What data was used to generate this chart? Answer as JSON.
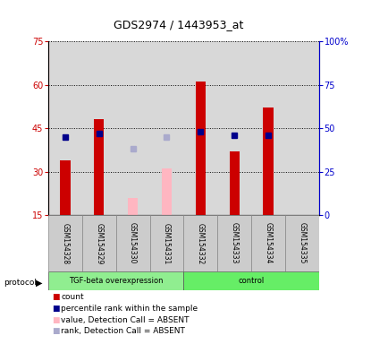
{
  "title": "GDS2974 / 1443953_at",
  "samples": [
    "GSM154328",
    "GSM154329",
    "GSM154330",
    "GSM154331",
    "GSM154332",
    "GSM154333",
    "GSM154334",
    "GSM154335"
  ],
  "count_values": [
    34,
    48,
    null,
    null,
    61,
    37,
    52,
    null
  ],
  "count_absent_values": [
    null,
    null,
    21,
    31,
    null,
    null,
    null,
    null
  ],
  "rank_present_values": [
    45,
    47,
    null,
    null,
    48,
    46,
    46,
    null
  ],
  "rank_absent_values": [
    null,
    null,
    38,
    45,
    null,
    null,
    null,
    null
  ],
  "ylim_left": [
    15,
    75
  ],
  "ylim_right": [
    0,
    100
  ],
  "yticks_left": [
    15,
    30,
    45,
    60,
    75
  ],
  "yticks_right": [
    0,
    25,
    50,
    75,
    100
  ],
  "ytick_labels_left": [
    "15",
    "30",
    "45",
    "60",
    "75"
  ],
  "ytick_labels_right": [
    "0",
    "25",
    "50",
    "75",
    "100%"
  ],
  "left_axis_color": "#CC0000",
  "right_axis_color": "#0000CC",
  "bar_color_present": "#CC0000",
  "bar_color_absent": "#FFB6C1",
  "rank_color_present": "#00008B",
  "rank_color_absent": "#AAAACC",
  "bg_color": "#D8D8D8",
  "group_label_1": "TGF-beta overexpression",
  "group_label_2": "control",
  "group_color_1": "#90EE90",
  "group_color_2": "#66EE66",
  "protocol_label": "protocol",
  "legend_items": [
    {
      "label": "count",
      "color": "#CC0000"
    },
    {
      "label": "percentile rank within the sample",
      "color": "#00008B"
    },
    {
      "label": "value, Detection Call = ABSENT",
      "color": "#FFB6C1"
    },
    {
      "label": "rank, Detection Call = ABSENT",
      "color": "#AAAACC"
    }
  ]
}
